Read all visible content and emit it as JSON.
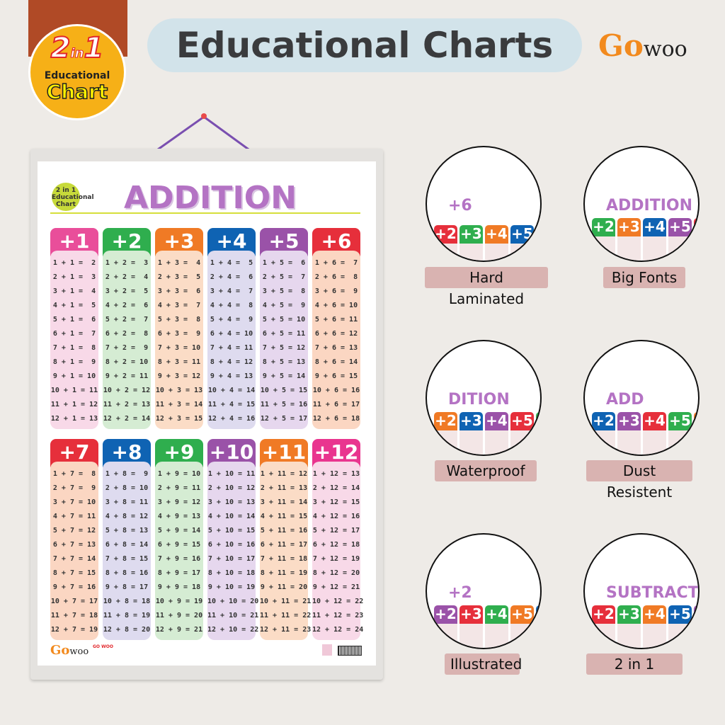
{
  "badge": {
    "big": "2",
    "in": "in",
    "one": "1",
    "line1": "Educational",
    "line2": "Chart"
  },
  "header": {
    "title": "Educational Charts",
    "brand_go": "Go",
    "brand_woo": "woo"
  },
  "poster": {
    "title": "ADDITION",
    "mini_logo": "2 in 1 Educational Chart",
    "footer_brand": "GO WOO",
    "columns": [
      {
        "label": "+1",
        "head": "#e94e9a",
        "body": "#f8d9e8",
        "rows": [
          "1 + 1 =  2",
          "2 + 1 =  3",
          "3 + 1 =  4",
          "4 + 1 =  5",
          "5 + 1 =  6",
          "6 + 1 =  7",
          "7 + 1 =  8",
          "8 + 1 =  9",
          "9 + 1 = 10",
          "10 + 1 = 11",
          "11 + 1 = 12",
          "12 + 1 = 13"
        ]
      },
      {
        "label": "+2",
        "head": "#2fae4e",
        "body": "#d5ecd3",
        "rows": [
          "1 + 2 =  3",
          "2 + 2 =  4",
          "3 + 2 =  5",
          "4 + 2 =  6",
          "5 + 2 =  7",
          "6 + 2 =  8",
          "7 + 2 =  9",
          "8 + 2 = 10",
          "9 + 2 = 11",
          "10 + 2 = 12",
          "11 + 2 = 13",
          "12 + 2 = 14"
        ]
      },
      {
        "label": "+3",
        "head": "#f07a25",
        "body": "#fbdcc6",
        "rows": [
          "1 + 3 =  4",
          "2 + 3 =  5",
          "3 + 3 =  6",
          "4 + 3 =  7",
          "5 + 3 =  8",
          "6 + 3 =  9",
          "7 + 3 = 10",
          "8 + 3 = 11",
          "9 + 3 = 12",
          "10 + 3 = 13",
          "11 + 3 = 14",
          "12 + 3 = 15"
        ]
      },
      {
        "label": "+4",
        "head": "#0f63b3",
        "body": "#dedbef",
        "rows": [
          "1 + 4 =  5",
          "2 + 4 =  6",
          "3 + 4 =  7",
          "4 + 4 =  8",
          "5 + 4 =  9",
          "6 + 4 = 10",
          "7 + 4 = 11",
          "8 + 4 = 12",
          "9 + 4 = 13",
          "10 + 4 = 14",
          "11 + 4 = 15",
          "12 + 4 = 16"
        ]
      },
      {
        "label": "+5",
        "head": "#9a52a8",
        "body": "#e6d7ee",
        "rows": [
          "1 + 5 =  6",
          "2 + 5 =  7",
          "3 + 5 =  8",
          "4 + 5 =  9",
          "5 + 5 = 10",
          "6 + 5 = 11",
          "7 + 5 = 12",
          "8 + 5 = 13",
          "9 + 5 = 14",
          "10 + 5 = 15",
          "11 + 5 = 16",
          "12 + 5 = 17"
        ]
      },
      {
        "label": "+6",
        "head": "#e62f3b",
        "body": "#fbd6c2",
        "rows": [
          "1 + 6 =  7",
          "2 + 6 =  8",
          "3 + 6 =  9",
          "4 + 6 = 10",
          "5 + 6 = 11",
          "6 + 6 = 12",
          "7 + 6 = 13",
          "8 + 6 = 14",
          "9 + 6 = 15",
          "10 + 6 = 16",
          "11 + 6 = 17",
          "12 + 6 = 18"
        ]
      },
      {
        "label": "+7",
        "head": "#e62f3b",
        "body": "#fbd6c2",
        "rows": [
          "1 + 7 =  8",
          "2 + 7 =  9",
          "3 + 7 = 10",
          "4 + 7 = 11",
          "5 + 7 = 12",
          "6 + 7 = 13",
          "7 + 7 = 14",
          "8 + 7 = 15",
          "9 + 7 = 16",
          "10 + 7 = 17",
          "11 + 7 = 18",
          "12 + 7 = 19"
        ]
      },
      {
        "label": "+8",
        "head": "#0f63b3",
        "body": "#dedbef",
        "rows": [
          "1 + 8 =  9",
          "2 + 8 = 10",
          "3 + 8 = 11",
          "4 + 8 = 12",
          "5 + 8 = 13",
          "6 + 8 = 14",
          "7 + 8 = 15",
          "8 + 8 = 16",
          "9 + 8 = 17",
          "10 + 8 = 18",
          "11 + 8 = 19",
          "12 + 8 = 20"
        ]
      },
      {
        "label": "+9",
        "head": "#2fae4e",
        "body": "#d5ecd3",
        "rows": [
          "1 + 9 = 10",
          "2 + 9 = 11",
          "3 + 9 = 12",
          "4 + 9 = 13",
          "5 + 9 = 14",
          "6 + 9 = 15",
          "7 + 9 = 16",
          "8 + 9 = 17",
          "9 + 9 = 18",
          "10 + 9 = 19",
          "11 + 9 = 20",
          "12 + 9 = 21"
        ]
      },
      {
        "label": "+10",
        "head": "#9a52a8",
        "body": "#e6d7ee",
        "rows": [
          "1 + 10 = 11",
          "2 + 10 = 12",
          "3 + 10 = 13",
          "4 + 10 = 14",
          "5 + 10 = 15",
          "6 + 10 = 16",
          "7 + 10 = 17",
          "8 + 10 = 18",
          "9 + 10 = 19",
          "10 + 10 = 20",
          "11 + 10 = 21",
          "12 + 10 = 22"
        ]
      },
      {
        "label": "+11",
        "head": "#f07a25",
        "body": "#fbdcc6",
        "rows": [
          "1 + 11 = 12",
          "2 + 11 = 13",
          "3 + 11 = 14",
          "4 + 11 = 15",
          "5 + 11 = 16",
          "6 + 11 = 17",
          "7 + 11 = 18",
          "8 + 11 = 19",
          "9 + 11 = 20",
          "10 + 11 = 21",
          "11 + 11 = 22",
          "12 + 11 = 23"
        ]
      },
      {
        "label": "+12",
        "head": "#e9358f",
        "body": "#f8d9e8",
        "rows": [
          "1 + 12 = 13",
          "2 + 12 = 14",
          "3 + 12 = 15",
          "4 + 12 = 16",
          "5 + 12 = 17",
          "6 + 12 = 18",
          "7 + 12 = 19",
          "8 + 12 = 20",
          "9 + 12 = 21",
          "10 + 12 = 22",
          "11 + 12 = 23",
          "12 + 12 = 24"
        ]
      }
    ]
  },
  "features": [
    {
      "caption": "Hard Laminated",
      "inset_text": "+6"
    },
    {
      "caption": "Big Fonts",
      "inset_text": "ADDITION"
    },
    {
      "caption": "Waterproof",
      "inset_text": "DITION"
    },
    {
      "caption": "Dust Resistent",
      "inset_text": "ADD"
    },
    {
      "caption": "Illustrated",
      "inset_text": "+2"
    },
    {
      "caption": "2 in 1",
      "inset_text": "SUBTRACTION"
    }
  ]
}
